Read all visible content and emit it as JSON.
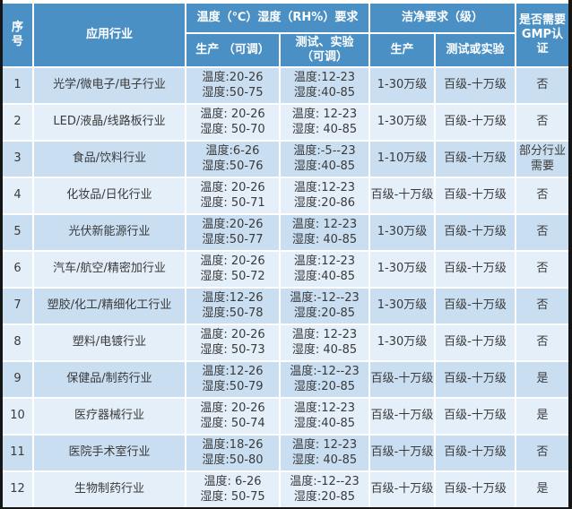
{
  "table": {
    "header": {
      "col_no_line1": "序",
      "col_no_line2": "号",
      "col_industry": "应用行业",
      "group_temp_humidity": "温度（℃）湿度（RH%）要求",
      "col_production_adjustable": "生产 （可调）",
      "col_test_adjustable_line1": "测试、实验",
      "col_test_adjustable_line2": "（可调）",
      "group_clean": "洁净要求（级）",
      "col_clean_production": "生产",
      "col_clean_test": "测试或实验",
      "col_gmp_line1": "是否需要",
      "col_gmp_line2": "GMP认证"
    },
    "rows": [
      {
        "no": "1",
        "industry": "光学/微电子/电子行业",
        "prod_temp": "温度:20-26",
        "prod_hum": "湿度:50-75",
        "test_temp": "温度:12-23",
        "test_hum": "湿度:40-85",
        "clean_prod": "1-30万级",
        "clean_test": "百级-十万级",
        "gmp": "否"
      },
      {
        "no": "2",
        "industry": "LED/液晶/线路板行业",
        "prod_temp": "温度: 20-26",
        "prod_hum": "湿度: 50-70",
        "test_temp": "温度: 12-23",
        "test_hum": "湿度: 40-85",
        "clean_prod": "1-30万级",
        "clean_test": "百级-十万级",
        "gmp": "否"
      },
      {
        "no": "3",
        "industry": "食品/饮料行业",
        "prod_temp": "温度:6-26",
        "prod_hum": "湿度:50-76",
        "test_temp": "温度:-5--23",
        "test_hum": "湿度:40-85",
        "clean_prod": "1-10万级",
        "clean_test": "百级-十万级",
        "gmp": "部分行业需要"
      },
      {
        "no": "4",
        "industry": "化妆品/日化行业",
        "prod_temp": "温度: 20-26",
        "prod_hum": "湿度: 50-71",
        "test_temp": "温度:12-23",
        "test_hum": "湿度:20-86",
        "clean_prod": "百级-十万级",
        "clean_test": "百级-十万级",
        "gmp": "否"
      },
      {
        "no": "5",
        "industry": "光伏新能源行业",
        "prod_temp": "温度:20-26",
        "prod_hum": "湿度:50-77",
        "test_temp": "温度: 12-23",
        "test_hum": "湿度: 40-85",
        "clean_prod": "1-30万级",
        "clean_test": "百级-十万级",
        "gmp": "否"
      },
      {
        "no": "6",
        "industry": "汽车/航空/精密加行业",
        "prod_temp": "温度: 20-26",
        "prod_hum": "湿度: 50-72",
        "test_temp": "温度:12-23",
        "test_hum": "湿度:40-85",
        "clean_prod": "1-30万级",
        "clean_test": "百级-十万级",
        "gmp": "否"
      },
      {
        "no": "7",
        "industry": "塑胶/化工/精细化工行业",
        "prod_temp": "温度:12-26",
        "prod_hum": "湿度:50-78",
        "test_temp": "温度:-12--23",
        "test_hum": "湿度:20-85",
        "clean_prod": "1-30万级",
        "clean_test": "百级-十万级",
        "gmp": "否"
      },
      {
        "no": "8",
        "industry": "塑料/电镀行业",
        "prod_temp": "温度: 20-26",
        "prod_hum": "湿度: 50-73",
        "test_temp": "温度: 12-23",
        "test_hum": "湿度: 40-85",
        "clean_prod": "1-30万级",
        "clean_test": "百级-十万级",
        "gmp": "否"
      },
      {
        "no": "9",
        "industry": "保健品/制药行业",
        "prod_temp": "温度:12-26",
        "prod_hum": "湿度:50-79",
        "test_temp": "温度:-12--23",
        "test_hum": "湿度:20-85",
        "clean_prod": "百级-十万级",
        "clean_test": "百级-十万级",
        "gmp": "是"
      },
      {
        "no": "10",
        "industry": "医疗器械行业",
        "prod_temp": "温度: 20-26",
        "prod_hum": "湿度: 50-74",
        "test_temp": "温度:12-23",
        "test_hum": "湿度:40-85",
        "clean_prod": "百级-十万级",
        "clean_test": "百级-十万级",
        "gmp": "是"
      },
      {
        "no": "11",
        "industry": "医院手术室行业",
        "prod_temp": "温度:18-26",
        "prod_hum": "湿度:50-80",
        "test_temp": "温度: 12-23",
        "test_hum": "湿度: 40-85",
        "clean_prod": "百级-十万级",
        "clean_test": "百级-十万级",
        "gmp": "否"
      },
      {
        "no": "12",
        "industry": "生物制药行业",
        "prod_temp": "温度: 6-26",
        "prod_hum": "湿度: 50-75",
        "test_temp": "温度:-12--23",
        "test_hum": "湿度:20-85",
        "clean_prod": "百级-十万级",
        "clean_test": "百级-十万级",
        "gmp": "是"
      }
    ]
  },
  "colors": {
    "header_bg": "#4a90c5",
    "row_odd": "#c9def1",
    "row_even": "#e4effa",
    "border_dark": "#151515",
    "grid_white": "#ffffff",
    "body_text": "#3a3a3a",
    "header_text": "#ffffff"
  }
}
